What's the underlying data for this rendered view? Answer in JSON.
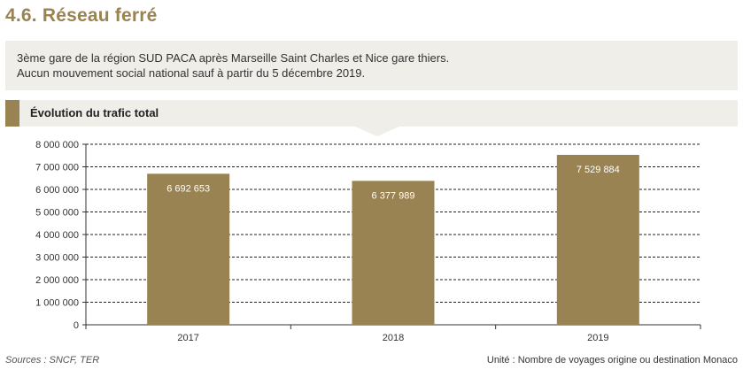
{
  "header": {
    "title": "4.6. Réseau ferré"
  },
  "intro": {
    "line1": "3ème gare de la région SUD PACA après Marseille Saint Charles et Nice gare thiers.",
    "line2": "Aucun mouvement social national sauf à partir du 5 décembre 2019."
  },
  "chart_header": {
    "label": "Évolution du trafic total"
  },
  "chart_data": {
    "type": "bar",
    "title": "Évolution du trafic total",
    "categories": [
      "2017",
      "2018",
      "2019"
    ],
    "values": [
      6692653,
      6377989,
      7529884
    ],
    "value_labels": [
      "6 692 653",
      "6 377 989",
      "7 529 884"
    ],
    "ylim": [
      0,
      8000000
    ],
    "yticks": [
      0,
      1000000,
      2000000,
      3000000,
      4000000,
      5000000,
      6000000,
      7000000,
      8000000
    ],
    "ytick_labels": [
      "0",
      "1 000 000",
      "2 000 000",
      "3 000 000",
      "4 000 000",
      "5 000 000",
      "6 000 000",
      "7 000 000",
      "8 000 000"
    ],
    "grid": true,
    "bar_color": "#9a8352"
  },
  "footer": {
    "source": "Sources : SNCF, TER",
    "unit": "Unité : Nombre de voyages origine ou destination Monaco"
  }
}
